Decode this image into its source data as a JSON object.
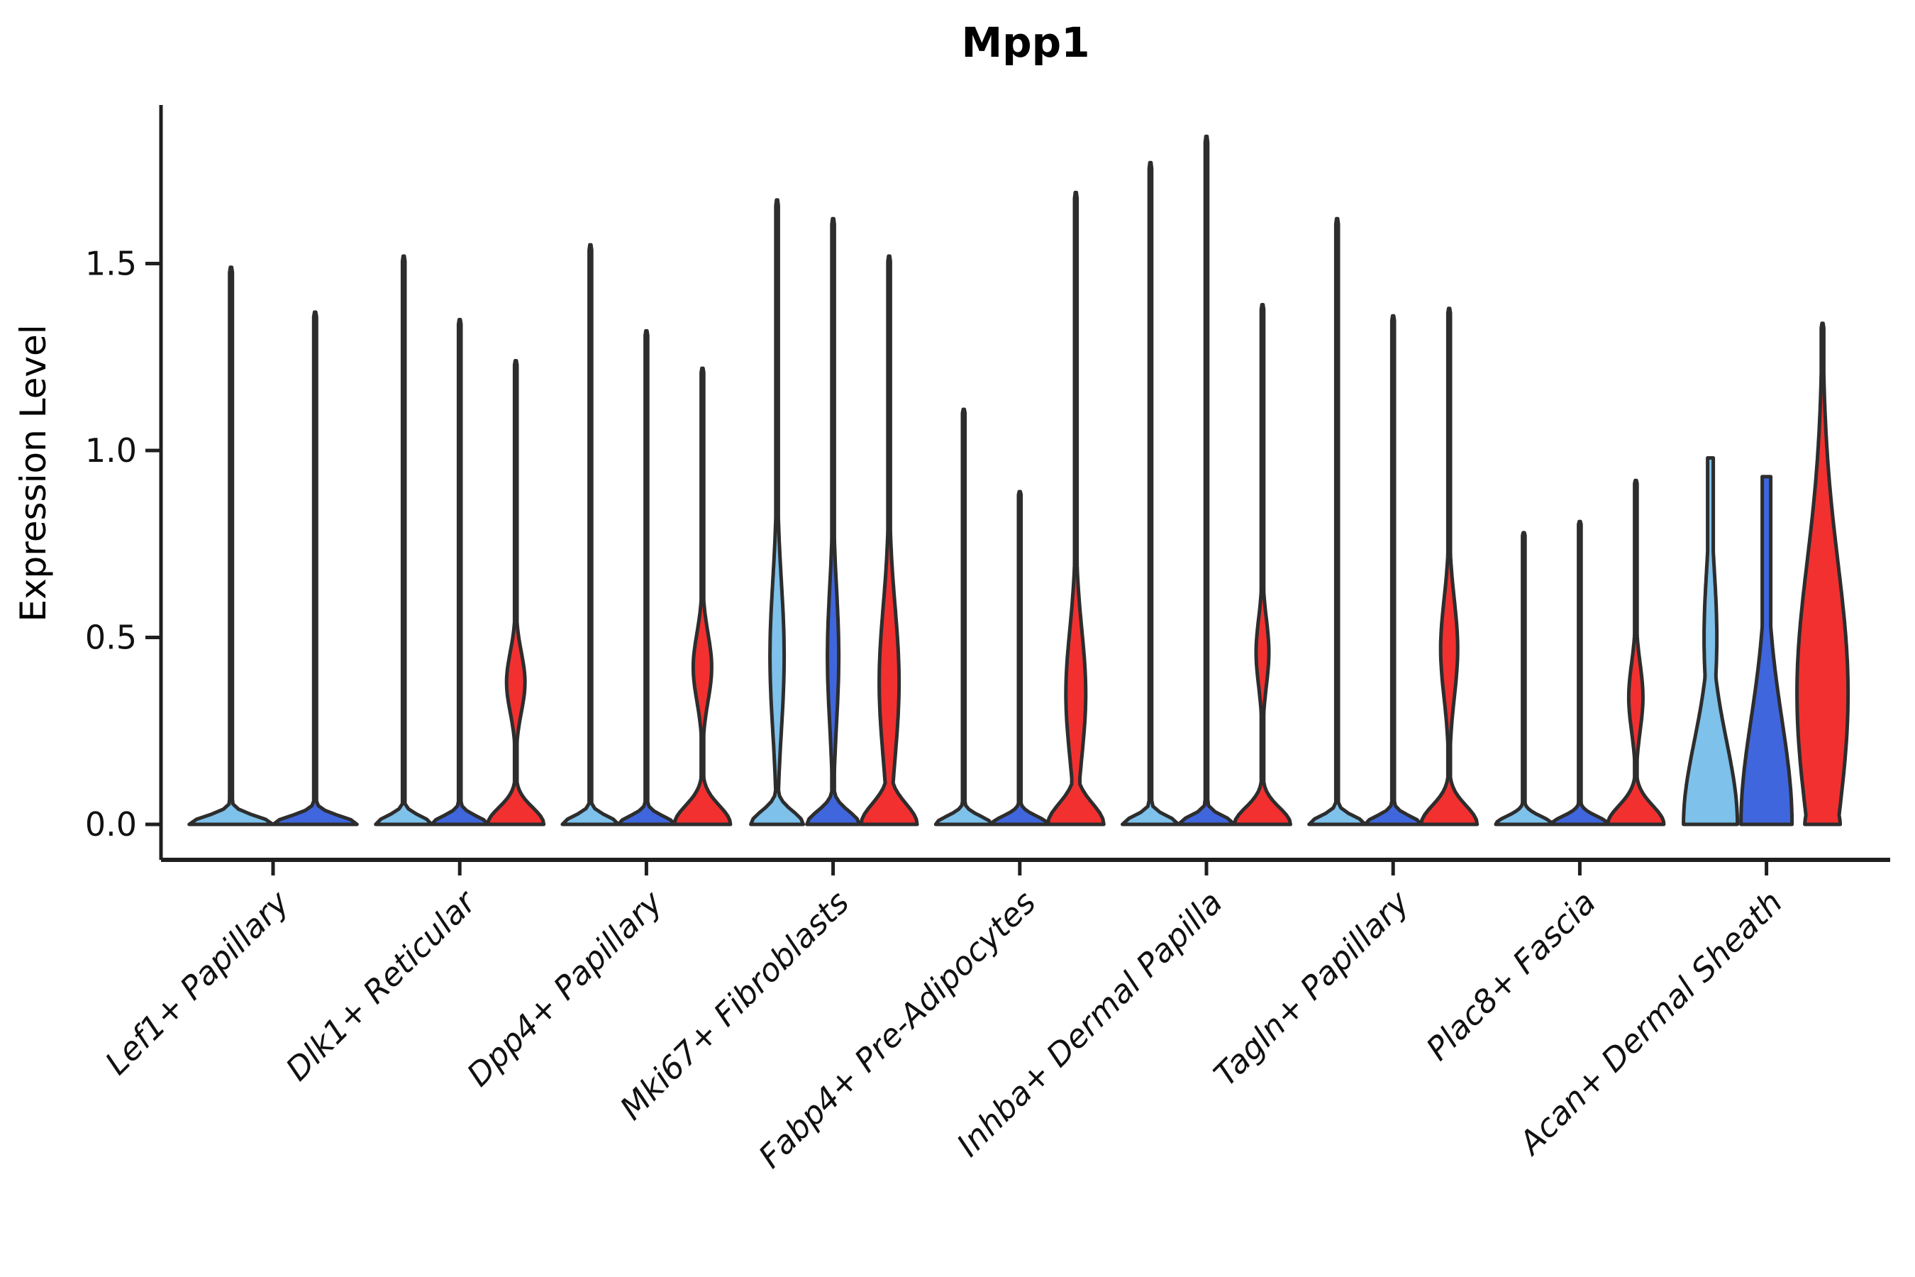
{
  "title": "Mpp1",
  "ylabel": "Expression Level",
  "style": {
    "background": "#ffffff",
    "axis_color": "#1f1f1f",
    "violin_stroke": "#2d2d2d",
    "text_color": "#111111"
  },
  "chart_data": {
    "type": "violin",
    "title": "Mpp1",
    "xlabel": "",
    "ylabel": "Expression Level",
    "ylim": [
      0,
      1.95
    ],
    "yticks": [
      "0.0",
      "0.5",
      "1.0",
      "1.5"
    ],
    "ytick_values": [
      0.0,
      0.5,
      1.0,
      1.5
    ],
    "grid": false,
    "legend": "none",
    "series_colors": {
      "lightblue": "#7EC1EA",
      "blue": "#3F66DC",
      "red": "#F23030"
    },
    "categories": [
      "Lef1+ Papillary",
      "Dlk1+ Reticular",
      "Dpp4+ Papillary",
      "Mki67+ Fibroblasts",
      "Fabp4+ Pre-Adipocytes",
      "Inhba+ Dermal Papilla",
      "Tagln+ Papillary",
      "Plac8+ Fascia",
      "Acan+ Dermal Sheath"
    ],
    "groups": [
      {
        "label": "Lef1+ Papillary",
        "violins": [
          {
            "color": "lightblue",
            "max": 1.49,
            "mode": 0.0,
            "profile": {
              "base": [
                59,
                0.022
              ],
              "spike": 2.0
            }
          },
          {
            "color": "blue",
            "max": 1.37,
            "mode": 0.0,
            "profile": {
              "base": [
                59,
                0.022
              ],
              "spike": 2.0
            }
          }
        ]
      },
      {
        "label": "Dlk1+ Reticular",
        "violins": [
          {
            "color": "lightblue",
            "max": 1.52,
            "mode": 0.0,
            "profile": {
              "base": [
                39.5,
                0.022
              ],
              "spike": 1.8
            }
          },
          {
            "color": "blue",
            "max": 1.35,
            "mode": 0.0,
            "profile": {
              "base": [
                39.5,
                0.022
              ],
              "spike": 1.8
            }
          },
          {
            "color": "red",
            "max": 1.24,
            "mode": 0.0,
            "bulge_at": 0.38,
            "profile": {
              "base": [
                39.5,
                0.045
              ],
              "bulge": [
                0.38,
                0.08,
                13
              ],
              "spike": 1.8
            }
          }
        ]
      },
      {
        "label": "Dpp4+ Papillary",
        "violins": [
          {
            "color": "lightblue",
            "max": 1.55,
            "mode": 0.0,
            "profile": {
              "base": [
                39.5,
                0.022
              ],
              "spike": 1.8
            }
          },
          {
            "color": "blue",
            "max": 1.32,
            "mode": 0.0,
            "profile": {
              "base": [
                39.5,
                0.022
              ],
              "spike": 1.8
            }
          },
          {
            "color": "red",
            "max": 1.22,
            "mode": 0.0,
            "bulge_at": 0.42,
            "profile": {
              "base": [
                39.5,
                0.05
              ],
              "bulge": [
                0.42,
                0.09,
                13
              ],
              "spike": 1.8
            }
          }
        ]
      },
      {
        "label": "Mki67+ Fibroblasts",
        "violins": [
          {
            "color": "lightblue",
            "max": 1.67,
            "mode": 0.0,
            "bulge_at": 0.45,
            "profile": {
              "base": [
                37,
                0.035
              ],
              "bulge": [
                0.45,
                0.2,
                10
              ],
              "spike": 1.8
            }
          },
          {
            "color": "blue",
            "max": 1.62,
            "mode": 0.0,
            "bulge_at": 0.45,
            "profile": {
              "base": [
                37,
                0.035
              ],
              "bulge": [
                0.45,
                0.18,
                8
              ],
              "spike": 1.8
            }
          },
          {
            "color": "red",
            "max": 1.52,
            "mode": 0.0,
            "bulge_at": 0.38,
            "profile": {
              "base": [
                39.5,
                0.055
              ],
              "bulge": [
                0.38,
                0.2,
                14
              ],
              "spike": 1.8
            }
          }
        ]
      },
      {
        "label": "Fabp4+ Pre-Adipocytes",
        "violins": [
          {
            "color": "lightblue",
            "max": 1.11,
            "mode": 0.0,
            "profile": {
              "base": [
                39.5,
                0.022
              ],
              "spike": 1.8
            }
          },
          {
            "color": "blue",
            "max": 0.89,
            "mode": 0.0,
            "profile": {
              "base": [
                39.5,
                0.022
              ],
              "spike": 1.8
            }
          },
          {
            "color": "red",
            "max": 1.69,
            "mode": 0.0,
            "bulge_at": 0.35,
            "profile": {
              "base": [
                39.5,
                0.055
              ],
              "bulge": [
                0.35,
                0.17,
                14
              ],
              "spike": 1.8
            }
          }
        ]
      },
      {
        "label": "Inhba+ Dermal Papilla",
        "violins": [
          {
            "color": "lightblue",
            "max": 1.77,
            "mode": 0.0,
            "profile": {
              "base": [
                39.5,
                0.022
              ],
              "spike": 1.8
            }
          },
          {
            "color": "blue",
            "max": 1.84,
            "mode": 0.0,
            "profile": {
              "base": [
                39.5,
                0.022
              ],
              "spike": 1.8
            }
          },
          {
            "color": "red",
            "max": 1.39,
            "mode": 0.0,
            "bulge_at": 0.46,
            "profile": {
              "base": [
                39.5,
                0.045
              ],
              "bulge": [
                0.46,
                0.09,
                9
              ],
              "spike": 1.8
            }
          }
        ]
      },
      {
        "label": "Tagln+ Papillary",
        "violins": [
          {
            "color": "lightblue",
            "max": 1.62,
            "mode": 0.0,
            "profile": {
              "base": [
                39.5,
                0.022
              ],
              "spike": 1.8
            }
          },
          {
            "color": "blue",
            "max": 1.36,
            "mode": 0.0,
            "profile": {
              "base": [
                39.5,
                0.022
              ],
              "spike": 1.8
            }
          },
          {
            "color": "red",
            "max": 1.38,
            "mode": 0.0,
            "bulge_at": 0.47,
            "profile": {
              "base": [
                39.5,
                0.05
              ],
              "bulge": [
                0.47,
                0.13,
                12
              ],
              "spike": 1.8
            }
          }
        ]
      },
      {
        "label": "Plac8+ Fascia",
        "violins": [
          {
            "color": "lightblue",
            "max": 0.78,
            "mode": 0.0,
            "profile": {
              "base": [
                39.5,
                0.022
              ],
              "spike": 1.8
            }
          },
          {
            "color": "blue",
            "max": 0.81,
            "mode": 0.0,
            "profile": {
              "base": [
                39.5,
                0.022
              ],
              "spike": 1.8
            }
          },
          {
            "color": "red",
            "max": 0.92,
            "mode": 0.0,
            "bulge_at": 0.34,
            "profile": {
              "base": [
                39.5,
                0.05
              ],
              "bulge": [
                0.34,
                0.09,
                10
              ],
              "spike": 1.8
            }
          }
        ]
      },
      {
        "label": "Acan+ Dermal Sheath",
        "violins": [
          {
            "color": "lightblue",
            "max": 0.98,
            "mode": 0.0,
            "bulge_at": 0.5,
            "profile": {
              "base": [
                38,
                0.22
              ],
              "bulge": [
                0.5,
                0.18,
                9
              ],
              "spike": 4.0,
              "blunt": true
            }
          },
          {
            "color": "blue",
            "max": 0.93,
            "mode": 0.0,
            "bulge_at": 0.35,
            "profile": {
              "base": [
                36,
                0.28
              ],
              "bulge": [
                0.35,
                0.25,
                6
              ],
              "spike": 6.0,
              "blunt": true
            }
          },
          {
            "color": "red",
            "max": 1.34,
            "mode": 0.0,
            "bulge_at": 0.4,
            "profile": {
              "base": [
                25,
                0.06
              ],
              "bulge": [
                0.35,
                0.35,
                36
              ],
              "spike": 1.8
            }
          }
        ]
      }
    ]
  }
}
